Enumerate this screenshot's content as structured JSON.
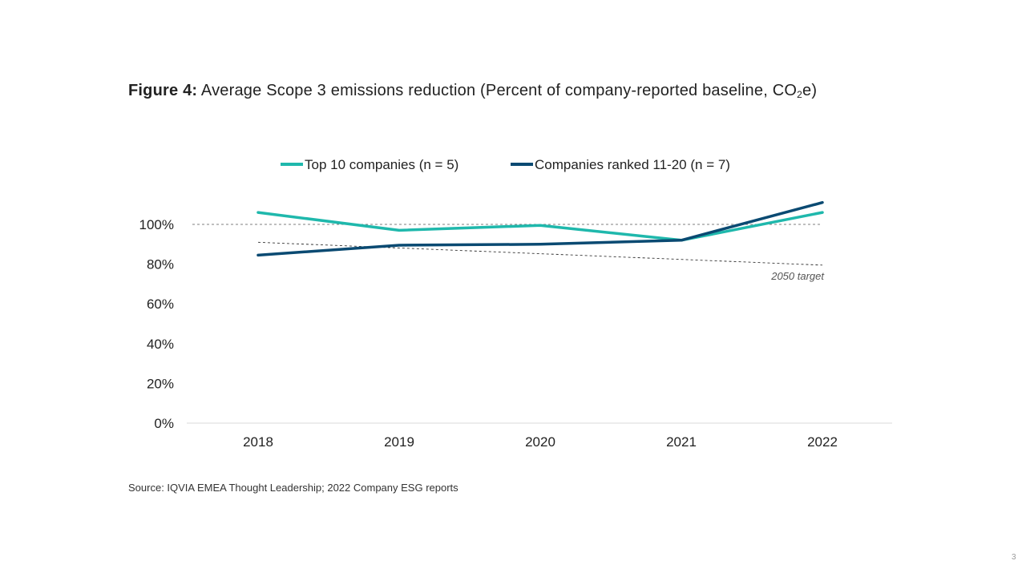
{
  "title": {
    "bold": "Figure 4:",
    "text": "Average Scope 3 emissions reduction (Percent of company-reported baseline, CO",
    "sub": "2",
    "suffix": "e)"
  },
  "source": "Source: IQVIA EMEA Thought Leadership; 2022 Company ESG reports",
  "page_number": "3",
  "colors": {
    "top10": "#1fb8ac",
    "ranked": "#0a4a72",
    "reference": "#555555",
    "axis": "#d9d9d9"
  },
  "chart_data": {
    "type": "line",
    "categories": [
      "2018",
      "2019",
      "2020",
      "2021",
      "2022"
    ],
    "series": [
      {
        "name": "Top 10 companies (n = 5)",
        "values": [
          106,
          97,
          99.5,
          92,
          106
        ]
      },
      {
        "name": "Companies ranked 11-20 (n = 7)",
        "values": [
          84.5,
          89.5,
          90,
          92,
          111
        ]
      }
    ],
    "reference_lines": [
      {
        "label": "",
        "type": "horizontal",
        "value": 100
      },
      {
        "label": "2050 target",
        "type": "trend",
        "from": 91,
        "to": 79.5
      }
    ],
    "y_ticks": [
      "0%",
      "20%",
      "40%",
      "60%",
      "80%",
      "100%"
    ],
    "ylim": [
      0,
      100
    ],
    "legend_position": "top-center",
    "grid": false
  }
}
